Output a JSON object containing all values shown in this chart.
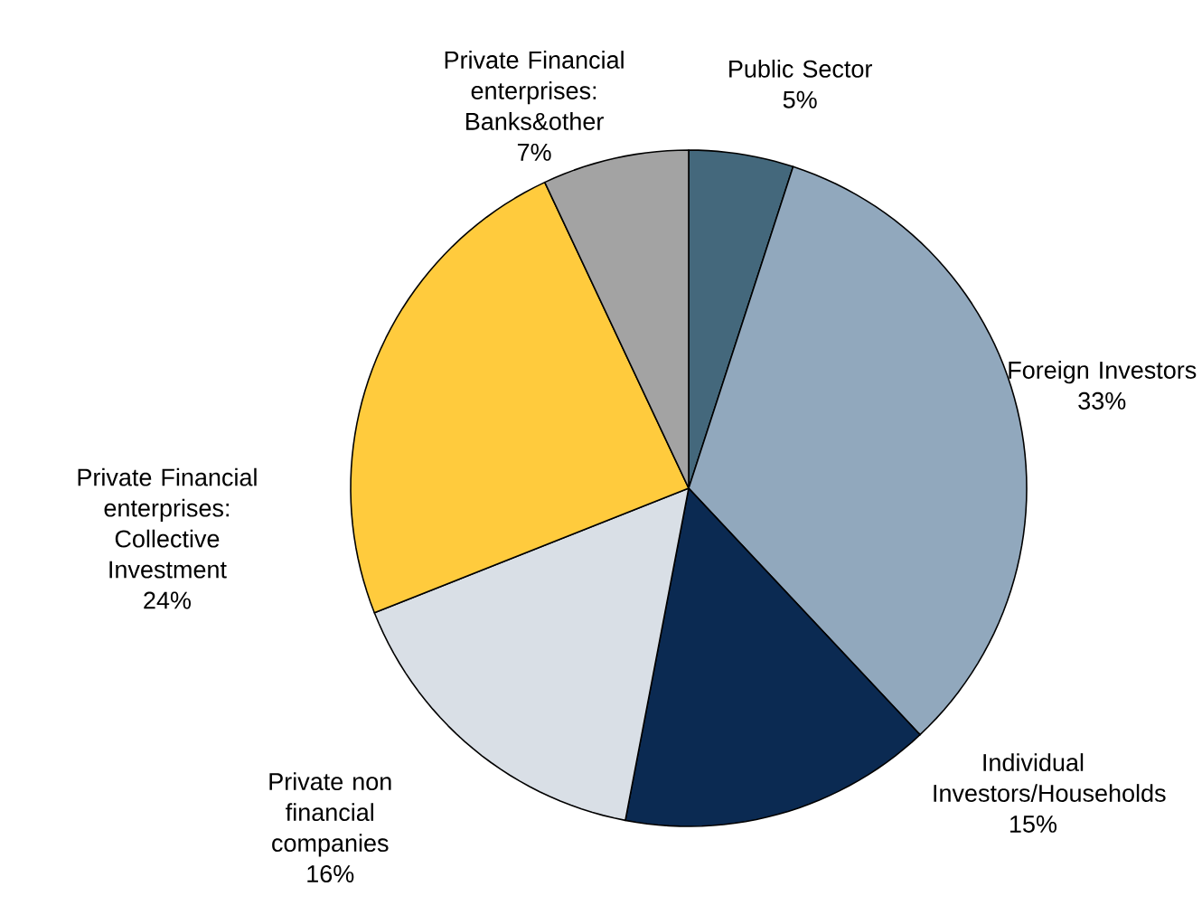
{
  "chart_data": {
    "type": "pie",
    "categories": [
      "Public Sector",
      "Foreign Investors",
      "Individual Investors/Households",
      "Private non financial companies",
      "Private Financial enterprises: Collective Investment",
      "Private Financial enterprises: Banks&other"
    ],
    "values": [
      5,
      33,
      15,
      16,
      24,
      7
    ],
    "value_labels": [
      "5%",
      "33%",
      "15%",
      "16%",
      "24%",
      "7%"
    ],
    "colors": [
      "#44687c",
      "#91a8bd",
      "#0b2a52",
      "#d9dfe6",
      "#ffcb3d",
      "#a3a3a3"
    ]
  }
}
